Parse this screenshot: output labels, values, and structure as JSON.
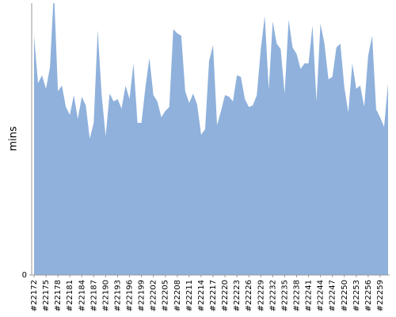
{
  "chart_data": {
    "type": "area",
    "y_label": "mins",
    "color": "#8fb1dc",
    "categories": [
      "#22172",
      null,
      null,
      "#22175",
      null,
      null,
      "#22178",
      null,
      null,
      "#22181",
      null,
      null,
      "#22184",
      null,
      null,
      "#22187",
      null,
      null,
      "#22190",
      null,
      null,
      "#22193",
      null,
      null,
      "#22196",
      null,
      null,
      "#22199",
      null,
      null,
      "#22202",
      null,
      null,
      "#22205",
      null,
      null,
      "#22208",
      null,
      null,
      "#22211",
      null,
      null,
      "#22214",
      null,
      null,
      "#22217",
      null,
      null,
      "#22220",
      null,
      null,
      "#22223",
      null,
      null,
      "#22226",
      null,
      null,
      "#22229",
      null,
      null,
      "#22232",
      null,
      null,
      "#22235",
      null,
      null,
      "#22238",
      null,
      null,
      "#22241",
      null,
      null,
      "#22244",
      null,
      null,
      "#22247",
      null,
      null,
      "#22250",
      null,
      null,
      "#22253",
      null,
      null,
      "#22256",
      null,
      null,
      "#22259",
      null,
      null
    ],
    "values": [
      302,
      242,
      252,
      235,
      262,
      360,
      232,
      239,
      212,
      202,
      227,
      197,
      225,
      214,
      172,
      192,
      309,
      227,
      175,
      229,
      219,
      222,
      210,
      239,
      222,
      267,
      192,
      192,
      237,
      274,
      227,
      219,
      199,
      207,
      212,
      310,
      305,
      302,
      232,
      217,
      229,
      215,
      177,
      184,
      270,
      290,
      189,
      207,
      227,
      225,
      219,
      252,
      250,
      222,
      212,
      214,
      227,
      285,
      327,
      234,
      320,
      292,
      285,
      229,
      322,
      287,
      279,
      260,
      267,
      267,
      315,
      219,
      317,
      292,
      247,
      250,
      287,
      292,
      237,
      205,
      267,
      235,
      239,
      212,
      277,
      302,
      209,
      199,
      187,
      242
    ],
    "ylim": [
      0,
      343
    ],
    "yticks": [
      0
    ]
  }
}
